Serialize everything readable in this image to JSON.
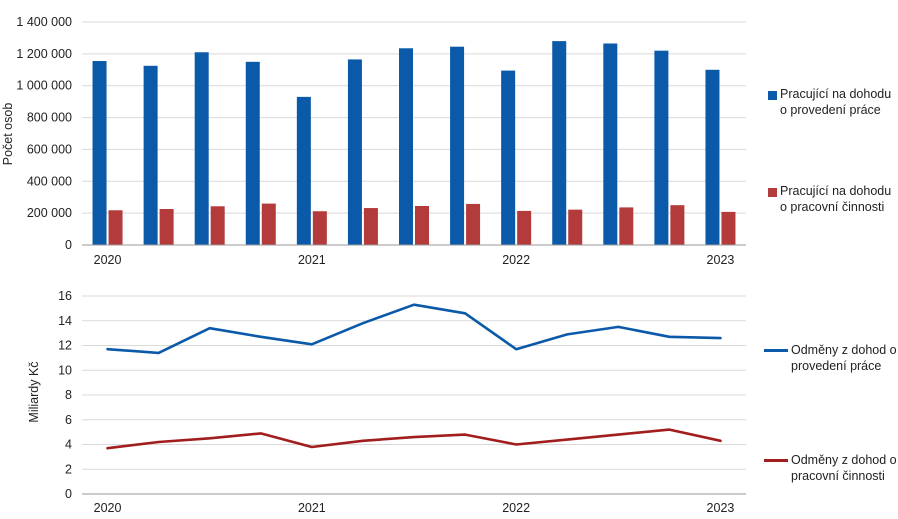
{
  "chart_data": [
    {
      "type": "bar",
      "title": "",
      "ylabel": "Počet osob",
      "ylim": [
        0,
        1400000
      ],
      "yticks": [
        "0",
        "200 000",
        "400 000",
        "600 000",
        "800 000",
        "1 000 000",
        "1 200 000",
        "1 400 000"
      ],
      "ytick_values": [
        0,
        200000,
        400000,
        600000,
        800000,
        1000000,
        1200000,
        1400000
      ],
      "xtick_labels": [
        {
          "label": "2020",
          "index": 0
        },
        {
          "label": "2021",
          "index": 4
        },
        {
          "label": "2022",
          "index": 8
        },
        {
          "label": "2023",
          "index": 12
        }
      ],
      "grid": true,
      "legend_position": "right",
      "series": [
        {
          "name": "Pracující na dohodu\no provedení práce",
          "color": "#0b5aa9",
          "values": [
            1155000,
            1125000,
            1210000,
            1150000,
            930000,
            1165000,
            1235000,
            1245000,
            1095000,
            1280000,
            1265000,
            1220000,
            1100000
          ]
        },
        {
          "name": "Pracující na dohodu\no pracovní činnosti",
          "color": "#b33b3b",
          "values": [
            218000,
            226000,
            243000,
            260000,
            212000,
            232000,
            245000,
            258000,
            214000,
            222000,
            236000,
            250000,
            208000
          ]
        }
      ]
    },
    {
      "type": "line",
      "title": "",
      "ylabel": "Miliardy Kč",
      "ylim": [
        0,
        16
      ],
      "yticks": [
        "0",
        "2",
        "4",
        "6",
        "8",
        "10",
        "12",
        "14",
        "16"
      ],
      "ytick_values": [
        0,
        2,
        4,
        6,
        8,
        10,
        12,
        14,
        16
      ],
      "xtick_labels": [
        {
          "label": "2020",
          "index": 0
        },
        {
          "label": "2021",
          "index": 4
        },
        {
          "label": "2022",
          "index": 8
        },
        {
          "label": "2023",
          "index": 12
        }
      ],
      "grid": true,
      "legend_position": "right",
      "series": [
        {
          "name": "Odměny z dohod o\nprovedení práce",
          "color": "#0b5aa9",
          "values": [
            11.7,
            11.4,
            13.4,
            12.7,
            12.1,
            13.8,
            15.3,
            14.6,
            11.7,
            12.9,
            13.5,
            12.7,
            12.6
          ]
        },
        {
          "name": "Odměny z dohod o\npracovní činnosti",
          "color": "#a21d1d",
          "values": [
            3.7,
            4.2,
            4.5,
            4.9,
            3.8,
            4.3,
            4.6,
            4.8,
            4.0,
            4.4,
            4.8,
            5.2,
            4.3
          ]
        }
      ]
    }
  ]
}
